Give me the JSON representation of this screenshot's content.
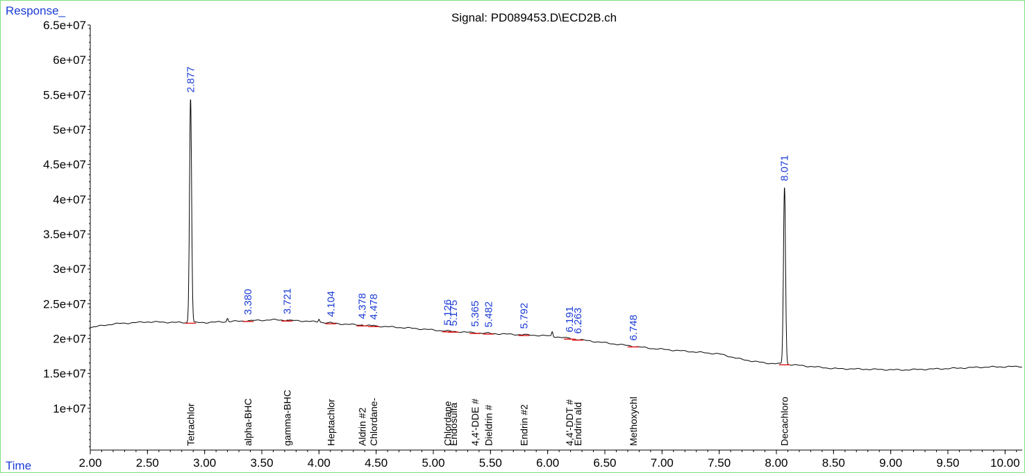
{
  "chart_data": {
    "type": "line",
    "title": "Signal: PD089453.D\\ECD2B.ch",
    "ylabel": "Response_",
    "xlabel": "Time",
    "xlim": [
      2.0,
      10.15
    ],
    "ylim": [
      4000000,
      65000000
    ],
    "x_ticks": [
      "2.00",
      "2.50",
      "3.00",
      "3.50",
      "4.00",
      "4.50",
      "5.00",
      "5.50",
      "6.00",
      "6.50",
      "7.00",
      "7.50",
      "8.00",
      "8.50",
      "9.00",
      "9.50",
      "10.00"
    ],
    "y_ticks": [
      "1e+07",
      "1.5e+07",
      "2e+07",
      "2.5e+07",
      "3e+07",
      "3.5e+07",
      "4e+07",
      "4.5e+07",
      "5e+07",
      "5.5e+07",
      "6e+07",
      "6.5e+07"
    ],
    "baseline": [
      [
        2.0,
        21600000
      ],
      [
        2.2,
        22100000
      ],
      [
        2.5,
        22400000
      ],
      [
        2.8,
        22300000
      ],
      [
        3.0,
        22300000
      ],
      [
        3.3,
        22500000
      ],
      [
        3.6,
        22700000
      ],
      [
        3.9,
        22500000
      ],
      [
        4.2,
        22100000
      ],
      [
        4.5,
        21800000
      ],
      [
        4.8,
        21500000
      ],
      [
        5.1,
        21100000
      ],
      [
        5.4,
        20800000
      ],
      [
        5.7,
        20600000
      ],
      [
        6.0,
        20400000
      ],
      [
        6.3,
        19800000
      ],
      [
        6.6,
        19200000
      ],
      [
        6.9,
        18600000
      ],
      [
        7.2,
        18200000
      ],
      [
        7.5,
        17800000
      ],
      [
        7.7,
        17000000
      ],
      [
        7.9,
        16500000
      ],
      [
        8.1,
        16300000
      ],
      [
        8.3,
        16000000
      ],
      [
        8.5,
        15700000
      ],
      [
        8.8,
        15600000
      ],
      [
        9.1,
        15500000
      ],
      [
        9.5,
        15700000
      ],
      [
        9.8,
        15900000
      ],
      [
        10.15,
        16000000
      ]
    ],
    "peaks": [
      {
        "rt": 2.877,
        "height": 54500000,
        "label": "2.877",
        "compound": "Tetrachlor"
      },
      {
        "rt": 3.38,
        "height": 22600000,
        "label": "3.380",
        "compound": "alpha-BHC"
      },
      {
        "rt": 3.721,
        "height": 22700000,
        "label": "3.721",
        "compound": "gamma-BHC"
      },
      {
        "rt": 4.104,
        "height": 22300000,
        "label": "4.104",
        "compound": "Heptachlor"
      },
      {
        "rt": 4.378,
        "height": 22000000,
        "label": "4.378",
        "compound": "Aldrin #2"
      },
      {
        "rt": 4.478,
        "height": 21900000,
        "label": "4.478",
        "compound": "Chlordane-"
      },
      {
        "rt": 5.126,
        "height": 21100000,
        "label": "5.126",
        "compound": "Chlordane"
      },
      {
        "rt": 5.175,
        "height": 21000000,
        "label": "5.175",
        "compound": "Endosulfa"
      },
      {
        "rt": 5.365,
        "height": 20900000,
        "label": "5.365",
        "compound": "4,4'-DDE #"
      },
      {
        "rt": 5.482,
        "height": 20800000,
        "label": "5.482",
        "compound": "Dieldrin #"
      },
      {
        "rt": 5.792,
        "height": 20600000,
        "label": "5.792",
        "compound": "Endrin #2"
      },
      {
        "rt": 6.191,
        "height": 20100000,
        "label": "6.191",
        "compound": "4,4'-DDT #"
      },
      {
        "rt": 6.263,
        "height": 19900000,
        "label": "6.263",
        "compound": "Endrin ald"
      },
      {
        "rt": 6.748,
        "height": 18900000,
        "label": "6.748",
        "compound": "Methoxychl"
      },
      {
        "rt": 8.071,
        "height": 41800000,
        "label": "8.071",
        "compound": "Decachloro"
      }
    ],
    "minor_peaks": [
      {
        "rt": 3.2,
        "height": 22900000
      },
      {
        "rt": 4.0,
        "height": 22800000
      },
      {
        "rt": 6.04,
        "height": 21000000
      }
    ]
  }
}
